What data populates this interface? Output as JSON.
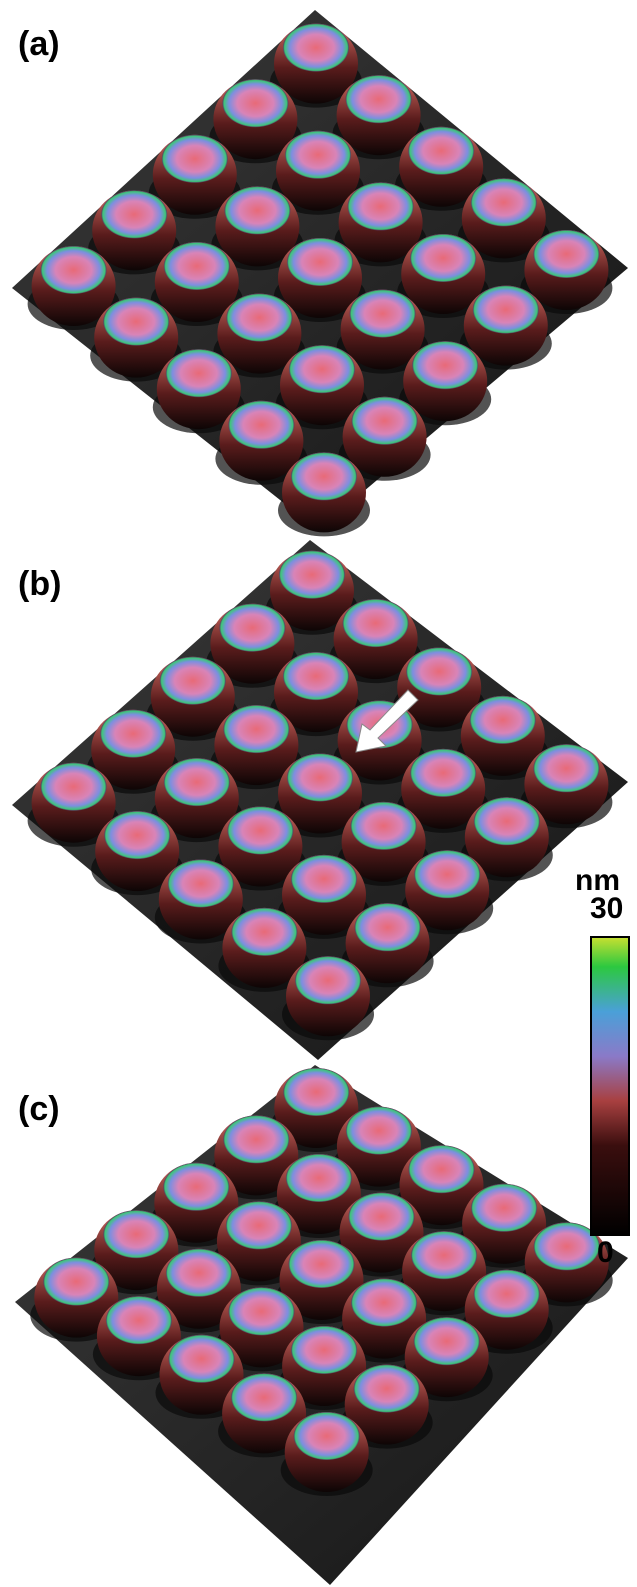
{
  "panels": [
    {
      "label": "(a)"
    },
    {
      "label": "(b)"
    },
    {
      "label": "(c)"
    }
  ],
  "colorbar": {
    "unit": "nm",
    "max": 30,
    "min": 0
  }
}
